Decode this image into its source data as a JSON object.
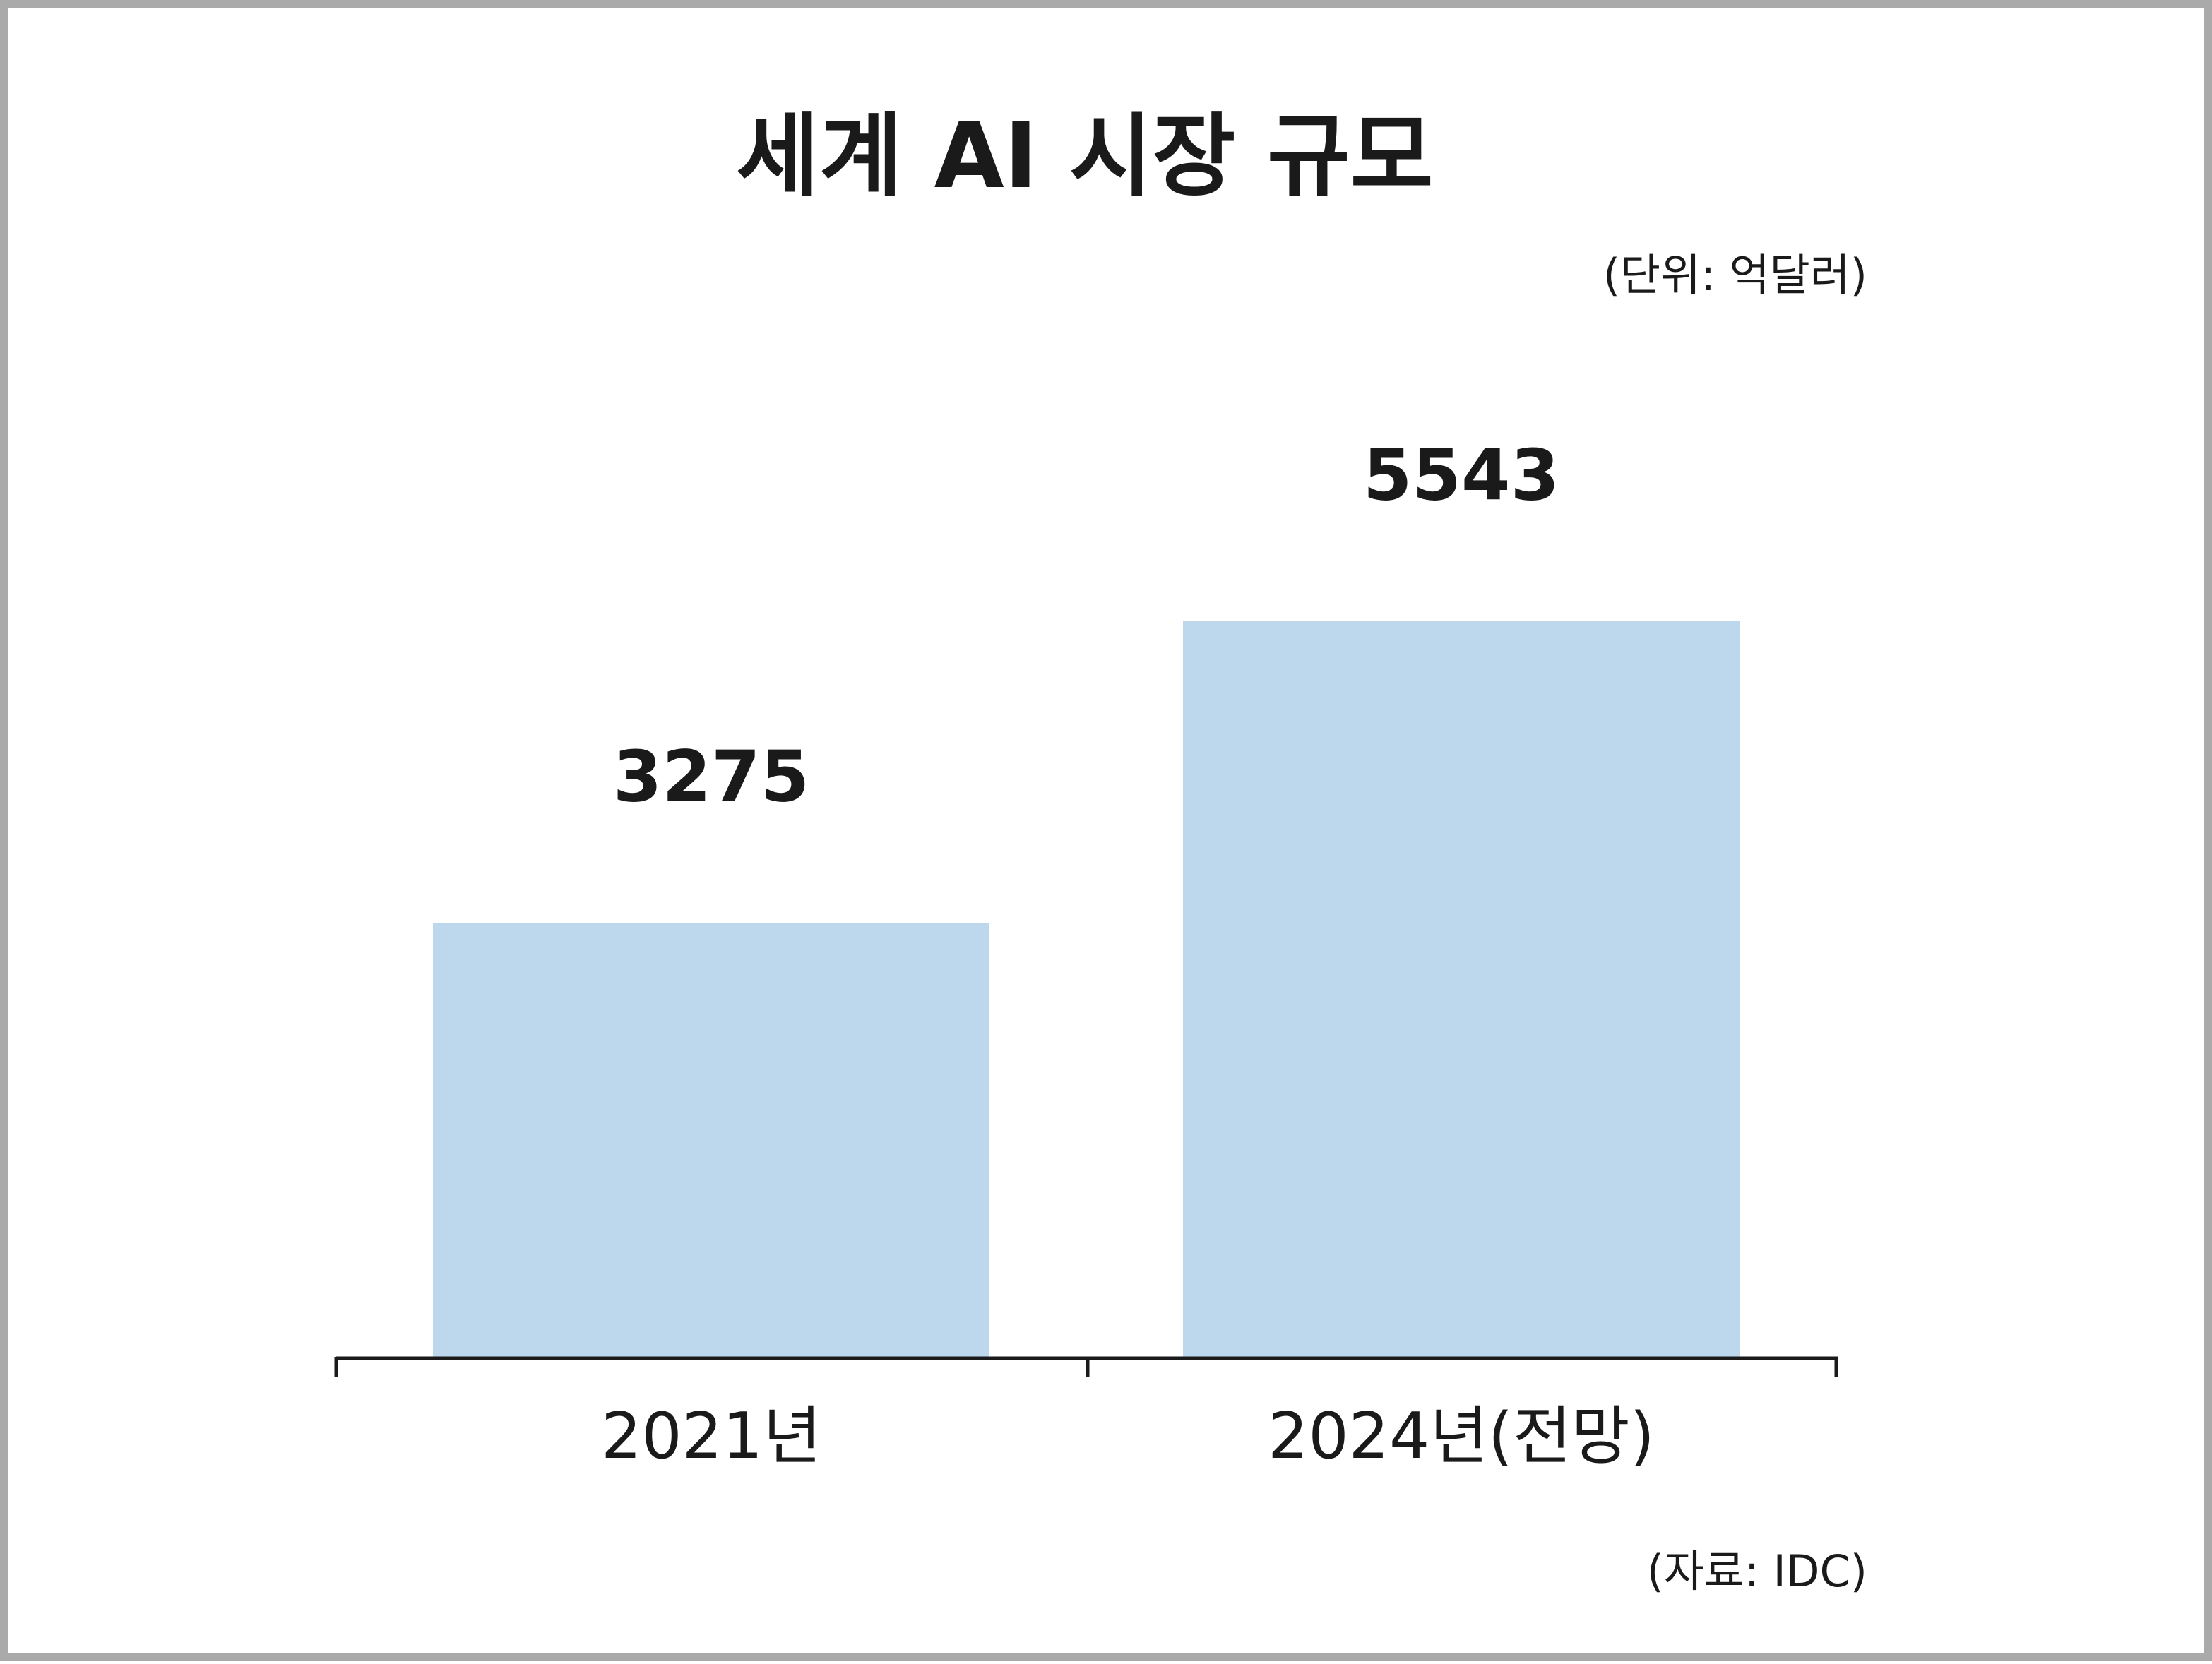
{
  "chart_data": {
    "type": "bar",
    "title": "세계 AI 시장 규모",
    "subtitle": "(단위: 억달러)",
    "categories": [
      "2021년",
      "2024년(전망)"
    ],
    "values": [
      3275,
      5543
    ],
    "color": "#bdd7ec",
    "source": "(자료: IDC)"
  }
}
